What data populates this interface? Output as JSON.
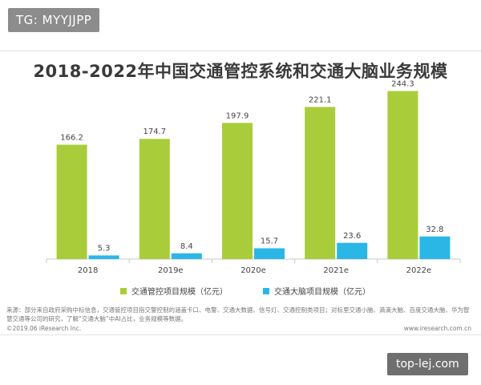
{
  "watermark_top": "TG: MYYJJPP",
  "watermark_bottom": "top-lej.com",
  "title": "2018-2022年中国交通管控系统和交通大脑业务规模",
  "legend": [
    {
      "label": "交通管控项目规模（亿元）",
      "color": "#a9cd3a"
    },
    {
      "label": "交通大脑项目规模（亿元）",
      "color": "#2ab7e6"
    }
  ],
  "source_note": "来源：部分来自政府采购中标信息，交通管控项目指交警控制的涵盖卡口、电警、交通大数据、信号灯、交通控制类项目；对标里交通小脑、滴滴大脑、百度交通大脑、华为智慧交通等公司的研究，了解“交通大脑”中AI占比，业务规模等数据。",
  "copyright": "©2019.06 iResearch Inc.",
  "website": "www.iresearch.com.cn",
  "chart_data": {
    "type": "bar",
    "title": "2018-2022年中国交通管控系统和交通大脑业务规模",
    "categories": [
      "2018",
      "2019e",
      "2020e",
      "2021e",
      "2022e"
    ],
    "series": [
      {
        "name": "交通管控项目规模（亿元）",
        "color": "#a9cd3a",
        "values": [
          166.2,
          174.7,
          197.9,
          221.1,
          244.3
        ]
      },
      {
        "name": "交通大脑项目规模（亿元）",
        "color": "#2ab7e6",
        "values": [
          5.3,
          8.4,
          15.7,
          23.6,
          32.8
        ]
      }
    ],
    "ylim": [
      0,
      260
    ],
    "grid": false,
    "legend_position": "bottom",
    "axis_color": "#c8c8c8"
  }
}
